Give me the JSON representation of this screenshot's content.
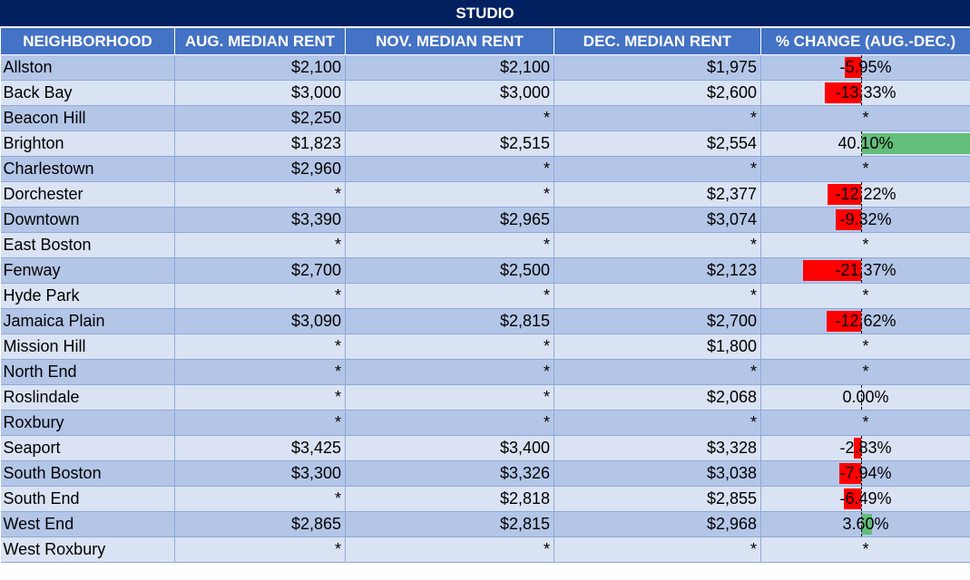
{
  "title": "STUDIO",
  "headers": [
    "NEIGHBORHOOD",
    "AUG. MEDIAN RENT",
    "NOV. MEDIAN RENT",
    "DEC. MEDIAN RENT",
    "% CHANGE (AUG.-DEC.)"
  ],
  "rows": [
    {
      "name": "Allston",
      "aug": "$2,100",
      "nov": "$2,100",
      "dec": "$1,975",
      "pct": "-5.95%",
      "pct_value": -5.95
    },
    {
      "name": "Back Bay",
      "aug": "$3,000",
      "nov": "$3,000",
      "dec": "$2,600",
      "pct": "-13.33%",
      "pct_value": -13.33
    },
    {
      "name": "Beacon Hill",
      "aug": "$2,250",
      "nov": "*",
      "dec": "*",
      "pct": "*",
      "pct_value": null
    },
    {
      "name": "Brighton",
      "aug": "$1,823",
      "nov": "$2,515",
      "dec": "$2,554",
      "pct": "40.10%",
      "pct_value": 40.1
    },
    {
      "name": "Charlestown",
      "aug": "$2,960",
      "nov": "*",
      "dec": "*",
      "pct": "*",
      "pct_value": null
    },
    {
      "name": "Dorchester",
      "aug": "*",
      "nov": "*",
      "dec": "$2,377",
      "pct": "-12.22%",
      "pct_value": -12.22
    },
    {
      "name": "Downtown",
      "aug": "$3,390",
      "nov": "$2,965",
      "dec": "$3,074",
      "pct": "-9.32%",
      "pct_value": -9.32
    },
    {
      "name": "East Boston",
      "aug": "*",
      "nov": "*",
      "dec": "*",
      "pct": "*",
      "pct_value": null
    },
    {
      "name": "Fenway",
      "aug": "$2,700",
      "nov": "$2,500",
      "dec": "$2,123",
      "pct": "-21.37%",
      "pct_value": -21.37
    },
    {
      "name": "Hyde Park",
      "aug": "*",
      "nov": "*",
      "dec": "*",
      "pct": "*",
      "pct_value": null
    },
    {
      "name": "Jamaica Plain",
      "aug": "$3,090",
      "nov": "$2,815",
      "dec": "$2,700",
      "pct": "-12.62%",
      "pct_value": -12.62
    },
    {
      "name": "Mission Hill",
      "aug": "*",
      "nov": "*",
      "dec": "$1,800",
      "pct": "*",
      "pct_value": null
    },
    {
      "name": "North End",
      "aug": "*",
      "nov": "*",
      "dec": "*",
      "pct": "*",
      "pct_value": null
    },
    {
      "name": "Roslindale",
      "aug": "*",
      "nov": "*",
      "dec": "$2,068",
      "pct": "0.00%",
      "pct_value": 0
    },
    {
      "name": "Roxbury",
      "aug": "*",
      "nov": "*",
      "dec": "*",
      "pct": "*",
      "pct_value": null
    },
    {
      "name": "Seaport",
      "aug": "$3,425",
      "nov": "$3,400",
      "dec": "$3,328",
      "pct": "-2.83%",
      "pct_value": -2.83
    },
    {
      "name": "South Boston",
      "aug": "$3,300",
      "nov": "$3,326",
      "dec": "$3,038",
      "pct": "-7.94%",
      "pct_value": -7.94
    },
    {
      "name": "South End",
      "aug": "*",
      "nov": "$2,818",
      "dec": "$2,855",
      "pct": "-6.49%",
      "pct_value": -6.49
    },
    {
      "name": "West End",
      "aug": "$2,865",
      "nov": "$2,815",
      "dec": "$2,968",
      "pct": "3.60%",
      "pct_value": 3.6
    },
    {
      "name": "West Roxbury",
      "aug": "*",
      "nov": "*",
      "dec": "*",
      "pct": "*",
      "pct_value": null
    }
  ],
  "colors": {
    "title_bg": "#002060",
    "header_bg": "#4472c4",
    "row_dark": "#b4c6e7",
    "row_light": "#dae3f3",
    "negative_bar": "#ff0000",
    "positive_bar": "#63be7b"
  }
}
